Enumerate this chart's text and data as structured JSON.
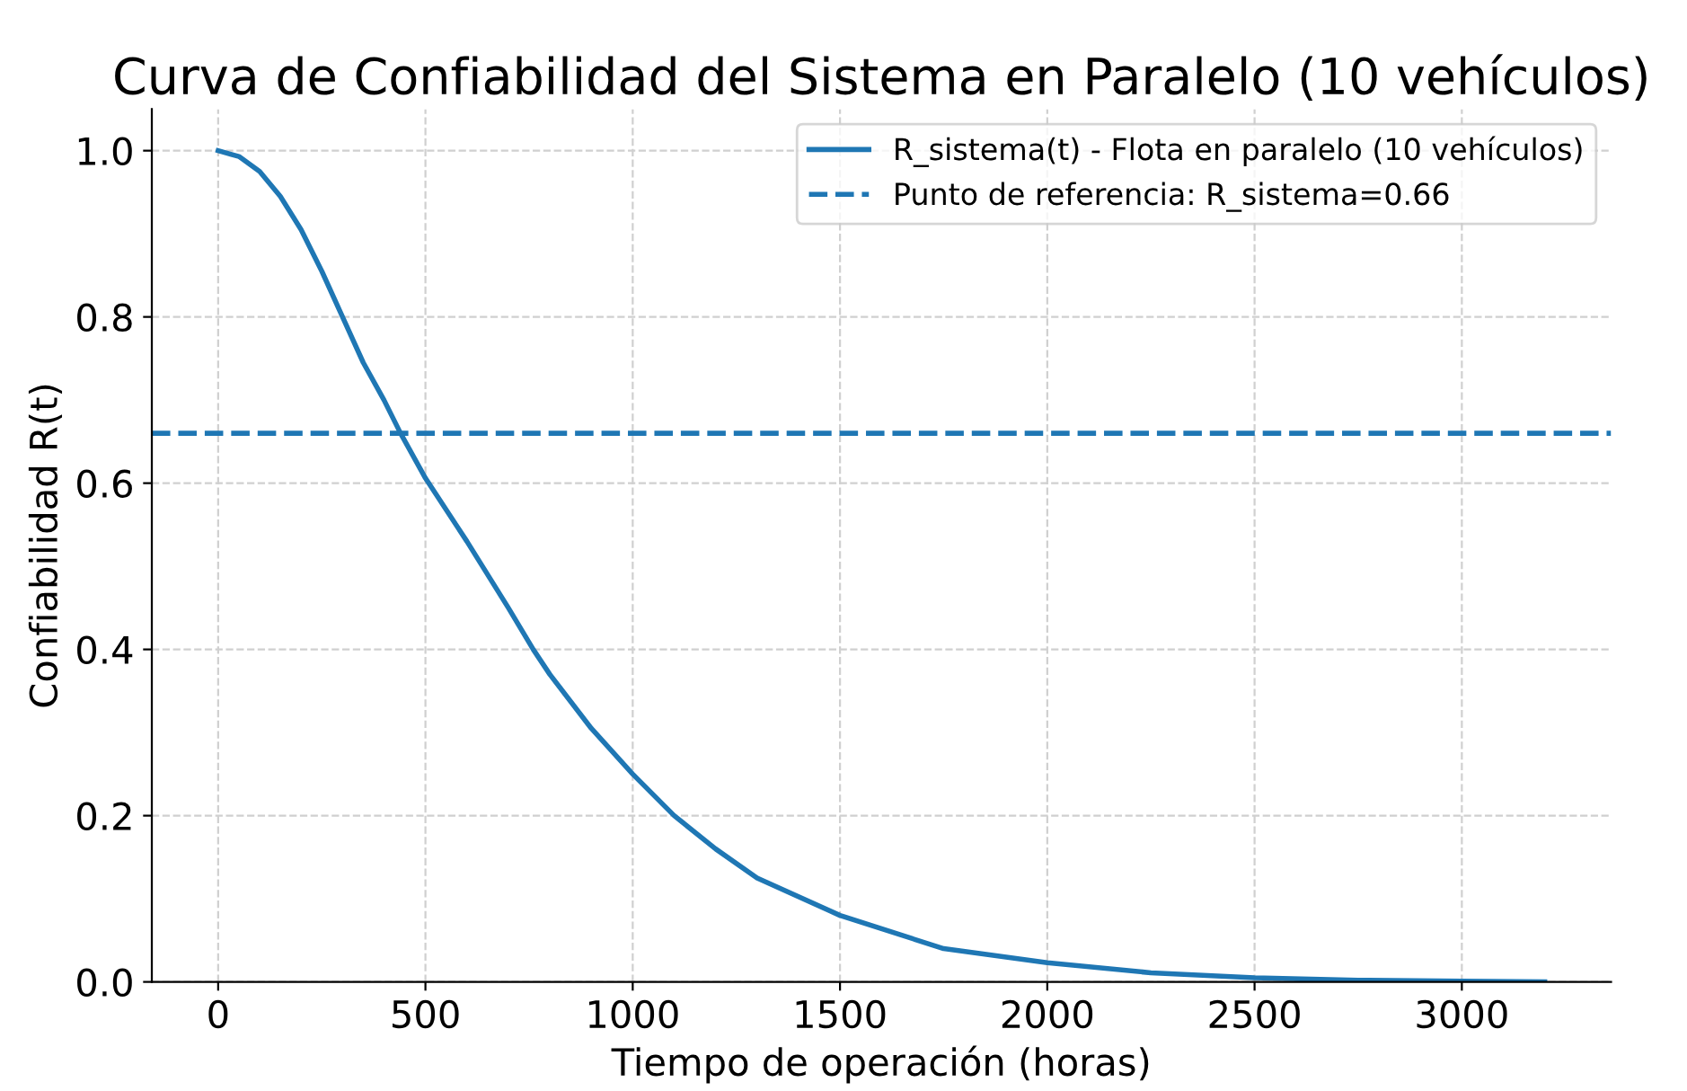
{
  "chart_data": {
    "type": "line",
    "title": "Curva de Confiabilidad del Sistema en Paralelo (10 vehículos)",
    "xlabel": "Tiempo de operación (horas)",
    "ylabel": "Confiabilidad R(t)",
    "series": [
      {
        "name": "R_sistema(t) - Flota en paralelo (10 vehículos)",
        "color": "#1f77b4",
        "x": [
          0,
          50,
          100,
          150,
          200,
          250,
          300,
          350,
          400,
          440,
          500,
          600,
          700,
          760,
          800,
          900,
          1000,
          1100,
          1200,
          1300,
          1500,
          1750,
          2000,
          2250,
          2500,
          2750,
          3000,
          3200
        ],
        "values": [
          1.0,
          0.993,
          0.975,
          0.945,
          0.905,
          0.855,
          0.8,
          0.745,
          0.7,
          0.66,
          0.606,
          0.53,
          0.45,
          0.4,
          0.37,
          0.305,
          0.25,
          0.2,
          0.16,
          0.125,
          0.08,
          0.04,
          0.023,
          0.011,
          0.005,
          0.002,
          0.001,
          0.0
        ]
      }
    ],
    "ref_lines": [
      {
        "axis": "y",
        "value": 0.66,
        "label": "Punto de referencia: R_sistema=0.66",
        "color": "#1f77b4",
        "line_style": "dashed"
      }
    ],
    "xlim": [
      -160,
      3360
    ],
    "xticks": [
      0,
      500,
      1000,
      1500,
      2000,
      2500,
      3000
    ],
    "ylim": [
      0,
      1.05
    ],
    "yticks": [
      {
        "value": 0,
        "label": "0.0"
      },
      0.2,
      0.4,
      0.6,
      0.8,
      {
        "value": 1,
        "label": "1.0"
      }
    ],
    "grid": true,
    "legend": "top right",
    "line_style": "solid",
    "marker": "none"
  }
}
